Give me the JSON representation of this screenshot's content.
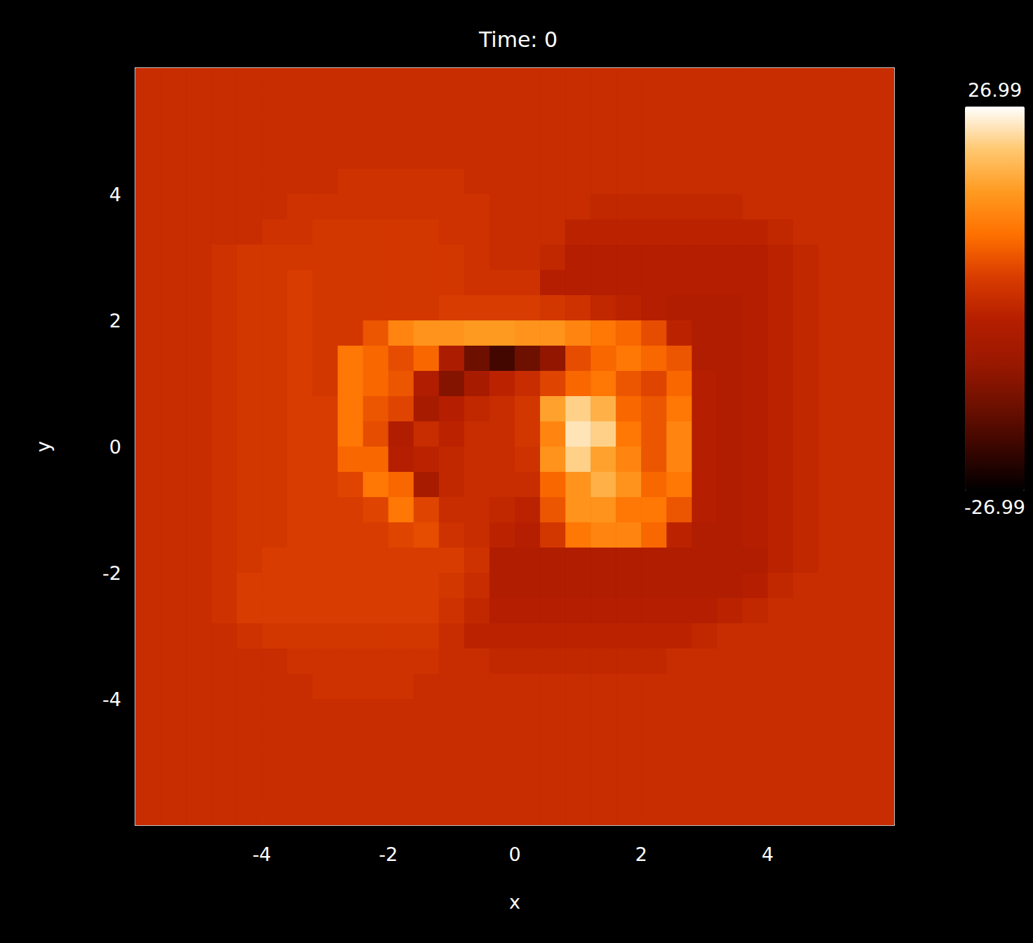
{
  "chart_data": {
    "type": "heatmap",
    "title": "Time: 0",
    "xlabel": "x",
    "ylabel": "y",
    "xlim": [
      -6,
      6
    ],
    "ylim": [
      -6,
      6
    ],
    "xticks": [
      -4,
      -2,
      0,
      2,
      4
    ],
    "yticks": [
      -4,
      -2,
      0,
      2,
      4
    ],
    "x": [
      -5.8,
      -5.4,
      -5.0,
      -4.6,
      -4.2,
      -3.8,
      -3.4,
      -3.0,
      -2.6,
      -2.2,
      -1.8,
      -1.4,
      -1.0,
      -0.6,
      -0.2,
      0.2,
      0.6,
      1.0,
      1.4,
      1.8,
      2.2,
      2.6,
      3.0,
      3.4,
      3.8,
      4.2,
      4.6,
      5.0,
      5.4,
      5.8
    ],
    "y": [
      5.8,
      5.4,
      5.0,
      4.6,
      4.2,
      3.8,
      3.4,
      3.0,
      2.6,
      2.2,
      1.8,
      1.4,
      1.0,
      0.6,
      0.2,
      -0.2,
      -0.6,
      -1.0,
      -1.4,
      -1.8,
      -2.2,
      -2.6,
      -3.0,
      -3.4,
      -3.8,
      -4.2,
      -4.6,
      -5.0,
      -5.4,
      -5.8
    ],
    "z": [
      [
        0,
        0,
        0,
        0,
        0,
        0,
        0,
        0,
        0,
        0,
        0,
        0,
        0,
        0,
        0,
        0,
        0,
        0,
        0,
        0,
        0,
        0,
        0,
        0,
        0,
        0,
        0,
        0,
        0,
        0
      ],
      [
        0,
        0,
        0,
        0,
        0,
        0,
        0,
        0,
        0,
        0,
        0,
        0,
        0,
        0,
        0,
        0,
        0,
        0,
        0,
        0,
        0,
        0,
        0,
        0,
        0,
        0,
        0,
        0,
        0,
        0
      ],
      [
        0,
        0,
        0,
        0,
        0,
        0,
        0,
        0,
        0,
        0,
        0,
        0,
        0,
        0,
        0,
        0,
        0,
        0,
        0,
        0,
        0,
        0,
        0,
        0,
        0,
        0,
        0,
        0,
        0,
        0
      ],
      [
        0,
        0,
        0,
        0,
        0,
        0,
        0,
        0,
        0,
        0,
        0,
        0,
        0,
        0,
        0,
        0,
        0,
        0,
        0,
        0,
        0,
        0,
        0,
        0,
        0,
        0,
        0,
        0,
        0,
        0
      ],
      [
        0,
        0,
        0,
        0,
        0,
        0,
        0,
        0,
        1,
        1,
        1,
        1,
        1,
        0,
        0,
        0,
        0,
        0,
        0,
        0,
        0,
        0,
        0,
        0,
        0,
        0,
        0,
        0,
        0,
        0
      ],
      [
        0,
        0,
        0,
        0,
        0,
        0,
        1,
        1,
        1,
        1,
        1,
        1,
        1,
        1,
        0,
        0,
        0,
        0,
        -1,
        -1,
        -1,
        -1,
        -1,
        -1,
        0,
        0,
        0,
        0,
        0,
        0
      ],
      [
        0,
        0,
        0,
        0,
        0,
        1,
        1,
        2,
        2,
        2,
        2,
        2,
        1,
        1,
        0,
        0,
        0,
        -2,
        -2,
        -2,
        -2,
        -2,
        -2,
        -2,
        -2,
        -1,
        0,
        0,
        0,
        0
      ],
      [
        0,
        0,
        0,
        1,
        2,
        2,
        2,
        2,
        2,
        2,
        2,
        2,
        2,
        1,
        0,
        0,
        -1,
        -3,
        -3,
        -3,
        -3,
        -3,
        -3,
        -3,
        -3,
        -2,
        -1,
        0,
        0,
        0
      ],
      [
        0,
        0,
        0,
        1,
        2,
        2,
        3,
        2,
        2,
        2,
        2,
        2,
        2,
        1,
        1,
        1,
        -3,
        -3,
        -3,
        -3,
        -3,
        -3,
        -3,
        -3,
        -3,
        -2,
        -1,
        0,
        0,
        0
      ],
      [
        0,
        0,
        0,
        1,
        2,
        2,
        3,
        2,
        2,
        2,
        2,
        2,
        3,
        3,
        3,
        3,
        2,
        1,
        -1,
        -2,
        -3,
        -4,
        -4,
        -4,
        -3,
        -2,
        -1,
        0,
        0,
        0
      ],
      [
        0,
        0,
        0,
        1,
        2,
        2,
        3,
        2,
        2,
        6,
        12,
        14,
        14,
        15,
        15,
        14,
        14,
        12,
        10,
        8,
        5,
        -2,
        -4,
        -4,
        -3,
        -2,
        -1,
        0,
        0,
        0
      ],
      [
        0,
        0,
        0,
        1,
        2,
        2,
        3,
        2,
        10,
        8,
        5,
        8,
        -5,
        -15,
        -20,
        -15,
        -10,
        5,
        8,
        10,
        8,
        6,
        -4,
        -4,
        -3,
        -2,
        -1,
        0,
        0,
        0
      ],
      [
        0,
        0,
        0,
        1,
        2,
        2,
        3,
        2,
        10,
        8,
        6,
        -4,
        -12,
        -6,
        -2,
        0,
        4,
        8,
        10,
        6,
        4,
        8,
        -3,
        -4,
        -3,
        -2,
        -1,
        0,
        0,
        0
      ],
      [
        0,
        0,
        0,
        1,
        2,
        2,
        3,
        3,
        10,
        6,
        4,
        -6,
        -3,
        -1,
        0,
        2,
        16,
        22,
        18,
        8,
        6,
        10,
        -3,
        -4,
        -3,
        -2,
        -1,
        0,
        0,
        0
      ],
      [
        0,
        0,
        0,
        1,
        2,
        2,
        3,
        3,
        10,
        5,
        -4,
        0,
        -2,
        0,
        0,
        2,
        12,
        24,
        22,
        10,
        6,
        12,
        -3,
        -4,
        -3,
        -2,
        -1,
        0,
        0,
        0
      ],
      [
        0,
        0,
        0,
        1,
        2,
        2,
        3,
        3,
        8,
        8,
        -3,
        -2,
        -1,
        0,
        0,
        1,
        14,
        22,
        16,
        12,
        6,
        12,
        -3,
        -4,
        -3,
        -2,
        -1,
        0,
        0,
        0
      ],
      [
        0,
        0,
        0,
        1,
        2,
        2,
        3,
        3,
        4,
        10,
        8,
        -6,
        -1,
        0,
        0,
        0,
        8,
        14,
        18,
        14,
        8,
        10,
        -3,
        -4,
        -3,
        -2,
        -1,
        0,
        0,
        0
      ],
      [
        0,
        0,
        0,
        1,
        2,
        2,
        3,
        3,
        3,
        4,
        10,
        4,
        0,
        0,
        -1,
        -2,
        6,
        14,
        14,
        10,
        10,
        6,
        -3,
        -4,
        -3,
        -2,
        -1,
        0,
        0,
        0
      ],
      [
        0,
        0,
        0,
        1,
        2,
        2,
        3,
        3,
        3,
        3,
        4,
        5,
        1,
        0,
        -2,
        -3,
        2,
        10,
        12,
        12,
        8,
        -2,
        -4,
        -4,
        -3,
        -2,
        -1,
        0,
        0,
        0
      ],
      [
        0,
        0,
        0,
        1,
        2,
        3,
        3,
        3,
        3,
        3,
        3,
        3,
        3,
        1,
        -4,
        -4,
        -4,
        -4,
        -4,
        -4,
        -4,
        -4,
        -4,
        -4,
        -4,
        -2,
        -1,
        0,
        0,
        0
      ],
      [
        0,
        0,
        0,
        1,
        3,
        3,
        3,
        3,
        3,
        3,
        3,
        3,
        2,
        0,
        -4,
        -4,
        -4,
        -4,
        -4,
        -4,
        -4,
        -4,
        -4,
        -4,
        -3,
        -1,
        0,
        0,
        0,
        0
      ],
      [
        0,
        0,
        0,
        1,
        3,
        3,
        3,
        3,
        3,
        3,
        3,
        3,
        1,
        -1,
        -3,
        -3,
        -3,
        -3,
        -3,
        -3,
        -3,
        -3,
        -3,
        -2,
        -1,
        0,
        0,
        0,
        0,
        0
      ],
      [
        0,
        0,
        0,
        0,
        1,
        2,
        2,
        2,
        2,
        2,
        2,
        2,
        0,
        -2,
        -2,
        -2,
        -2,
        -2,
        -2,
        -2,
        -2,
        -2,
        -1,
        0,
        0,
        0,
        0,
        0,
        0,
        0
      ],
      [
        0,
        0,
        0,
        0,
        0,
        0,
        1,
        1,
        1,
        1,
        1,
        1,
        0,
        0,
        -1,
        -1,
        -1,
        -1,
        -1,
        -1,
        -1,
        0,
        0,
        0,
        0,
        0,
        0,
        0,
        0,
        0
      ],
      [
        0,
        0,
        0,
        0,
        0,
        0,
        0,
        1,
        1,
        1,
        1,
        0,
        0,
        0,
        0,
        0,
        0,
        0,
        0,
        0,
        0,
        0,
        0,
        0,
        0,
        0,
        0,
        0,
        0,
        0
      ],
      [
        0,
        0,
        0,
        0,
        0,
        0,
        0,
        0,
        0,
        0,
        0,
        0,
        0,
        0,
        0,
        0,
        0,
        0,
        0,
        0,
        0,
        0,
        0,
        0,
        0,
        0,
        0,
        0,
        0,
        0
      ],
      [
        0,
        0,
        0,
        0,
        0,
        0,
        0,
        0,
        0,
        0,
        0,
        0,
        0,
        0,
        0,
        0,
        0,
        0,
        0,
        0,
        0,
        0,
        0,
        0,
        0,
        0,
        0,
        0,
        0,
        0
      ],
      [
        0,
        0,
        0,
        0,
        0,
        0,
        0,
        0,
        0,
        0,
        0,
        0,
        0,
        0,
        0,
        0,
        0,
        0,
        0,
        0,
        0,
        0,
        0,
        0,
        0,
        0,
        0,
        0,
        0,
        0
      ],
      [
        0,
        0,
        0,
        0,
        0,
        0,
        0,
        0,
        0,
        0,
        0,
        0,
        0,
        0,
        0,
        0,
        0,
        0,
        0,
        0,
        0,
        0,
        0,
        0,
        0,
        0,
        0,
        0,
        0,
        0
      ],
      [
        0,
        0,
        0,
        0,
        0,
        0,
        0,
        0,
        0,
        0,
        0,
        0,
        0,
        0,
        0,
        0,
        0,
        0,
        0,
        0,
        0,
        0,
        0,
        0,
        0,
        0,
        0,
        0,
        0,
        0
      ]
    ],
    "colorbar": {
      "range": [
        -26.99,
        26.99
      ],
      "ticks": [
        -26.99,
        26.99
      ]
    }
  }
}
